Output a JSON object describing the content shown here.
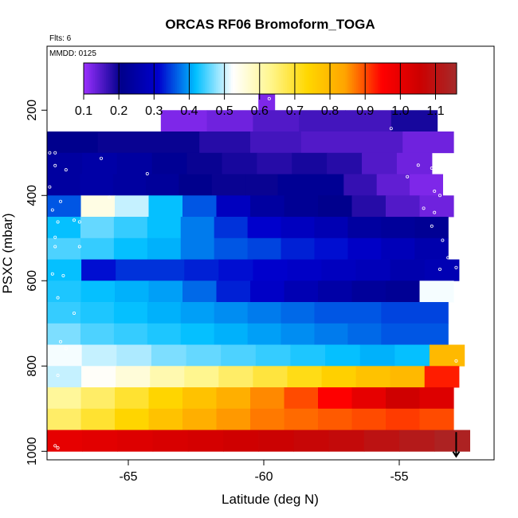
{
  "chart_data": {
    "type": "heatmap",
    "title": "ORCAS RF06 Bromoform_TOGA",
    "annotations": {
      "flights": "Flts: 6",
      "date": "MMDD: 0125"
    },
    "xlabel": "Latitude (deg N)",
    "ylabel": "PSXC (mbar)",
    "xlim": [
      -68,
      -51.5
    ],
    "ylim": [
      1020,
      50
    ],
    "y_reversed": true,
    "x_ticks": [
      "-65",
      "-60",
      "-55"
    ],
    "x_tick_values": [
      -65,
      -60,
      -55
    ],
    "y_ticks": [
      "200",
      "400",
      "600",
      "800",
      "1000"
    ],
    "y_tick_values": [
      200,
      400,
      600,
      800,
      1000
    ],
    "colorbar": {
      "ticks": [
        "0.1",
        "0.2",
        "0.3",
        "0.4",
        "0.5",
        "0.6",
        "0.7",
        "0.8",
        "0.9",
        "1.0",
        "1.1"
      ],
      "tick_values": [
        0.1,
        0.2,
        0.3,
        0.4,
        0.5,
        0.6,
        0.7,
        0.8,
        0.9,
        1.0,
        1.1
      ],
      "range": [
        0.1,
        1.16
      ],
      "colors": [
        "#9b30ff",
        "#00008b",
        "#0000cd",
        "#00bfff",
        "#ffffff",
        "#fff68f",
        "#ffd700",
        "#ffa500",
        "#ff0000",
        "#cd0000",
        "#a52a2a"
      ]
    },
    "bin_height_mbar": 50,
    "rows": [
      {
        "p": 175,
        "lat_start": -60.2,
        "values": [
          0.12
        ]
      },
      {
        "p": 225,
        "lat_start": -63.8,
        "values": [
          0.12,
          0.13,
          0.15,
          0.16,
          0.16,
          0.19
        ]
      },
      {
        "p": 275,
        "lat_start": -68,
        "values": [
          0.21,
          0.2,
          0.2,
          0.18,
          0.16,
          0.15,
          0.15,
          0.13
        ]
      },
      {
        "p": 325,
        "lat_start": -68,
        "values": [
          0.24,
          0.25,
          0.24,
          0.22,
          0.2,
          0.19,
          0.18,
          0.19,
          0.18,
          0.15,
          0.13
        ]
      },
      {
        "p": 375,
        "lat_start": -68,
        "values": [
          0.24,
          0.25,
          0.24,
          0.23,
          0.21,
          0.2,
          0.2,
          0.22,
          0.22,
          0.17,
          0.14,
          0.12
        ]
      },
      {
        "p": 425,
        "lat_start": -68,
        "values": [
          0.36,
          0.55,
          0.5,
          0.42,
          0.36,
          0.29,
          0.24,
          0.22,
          0.21,
          0.18,
          0.15,
          0.13
        ]
      },
      {
        "p": 475,
        "lat_start": -68,
        "values": [
          0.42,
          0.46,
          0.44,
          0.42,
          0.38,
          0.34,
          0.31,
          0.29,
          0.27,
          0.24,
          0.23,
          0.22
        ]
      },
      {
        "p": 525,
        "lat_start": -68,
        "values": [
          0.45,
          0.44,
          0.42,
          0.41,
          0.38,
          0.36,
          0.35,
          0.33,
          0.32,
          0.3,
          0.28,
          0.26
        ]
      },
      {
        "p": 575,
        "lat_start": -68,
        "values": [
          0.42,
          0.32,
          0.34,
          0.34,
          0.33,
          0.32,
          0.31,
          0.3,
          0.29,
          0.28,
          0.26,
          0.27
        ]
      },
      {
        "p": 625,
        "lat_start": -68,
        "values": [
          0.43,
          0.42,
          0.41,
          0.4,
          0.37,
          0.33,
          0.3,
          0.27,
          0.25,
          0.23,
          0.22,
          0.52
        ]
      },
      {
        "p": 675,
        "lat_start": -68,
        "values": [
          0.44,
          0.43,
          0.42,
          0.41,
          0.4,
          0.39,
          0.38,
          0.37,
          0.36,
          0.36,
          0.35,
          0.35
        ]
      },
      {
        "p": 725,
        "lat_start": -68,
        "values": [
          0.47,
          0.45,
          0.44,
          0.43,
          0.42,
          0.41,
          0.4,
          0.39,
          0.38,
          0.37,
          0.36,
          0.36
        ]
      },
      {
        "p": 775,
        "lat_start": -68,
        "values": [
          0.52,
          0.5,
          0.49,
          0.47,
          0.46,
          0.45,
          0.44,
          0.43,
          0.42,
          0.41,
          0.42,
          0.8
        ]
      },
      {
        "p": 825,
        "lat_start": -68,
        "values": [
          0.5,
          0.53,
          0.56,
          0.6,
          0.63,
          0.66,
          0.69,
          0.72,
          0.75,
          0.78,
          0.8,
          0.93
        ]
      },
      {
        "p": 875,
        "lat_start": -68,
        "values": [
          0.62,
          0.66,
          0.7,
          0.74,
          0.78,
          0.82,
          0.86,
          0.9,
          0.95,
          1.0,
          1.05,
          1.02
        ]
      },
      {
        "p": 925,
        "lat_start": -68,
        "values": [
          0.66,
          0.7,
          0.74,
          0.78,
          0.82,
          0.85,
          0.87,
          0.88,
          0.89,
          0.9,
          0.91,
          0.9
        ]
      },
      {
        "p": 975,
        "lat_start": -68,
        "values": [
          1.0,
          1.01,
          1.02,
          1.03,
          1.04,
          1.05,
          1.06,
          1.07,
          1.08,
          1.1,
          1.12,
          1.14
        ]
      }
    ],
    "row_ends": [
      -59.6,
      -53.6,
      -53.0,
      -53.8,
      -53.4,
      -53.0,
      -53.2,
      -53.2,
      -52.8,
      -53.0,
      -53.2,
      -53.2,
      -52.6,
      -52.8,
      -53.0,
      -53.0,
      -52.4
    ],
    "samples": [
      [
        -59.8,
        173
      ],
      [
        -55.3,
        243
      ],
      [
        -67.9,
        300
      ],
      [
        -67.7,
        300
      ],
      [
        -66.0,
        313
      ],
      [
        -54.3,
        329
      ],
      [
        -67.7,
        330
      ],
      [
        -67.3,
        340
      ],
      [
        -53.8,
        336
      ],
      [
        -64.3,
        349
      ],
      [
        -54.7,
        356
      ],
      [
        -67.9,
        380
      ],
      [
        -53.7,
        390
      ],
      [
        -53.5,
        400
      ],
      [
        -65.7,
        404
      ],
      [
        -67.5,
        414
      ],
      [
        -54.1,
        430
      ],
      [
        -53.7,
        440
      ],
      [
        -67.8,
        434
      ],
      [
        -67.6,
        462
      ],
      [
        -67.0,
        458
      ],
      [
        -66.8,
        462
      ],
      [
        -53.8,
        472
      ],
      [
        -53.0,
        482
      ],
      [
        -67.7,
        498
      ],
      [
        -53.4,
        505
      ],
      [
        -67.7,
        520
      ],
      [
        -66.8,
        520
      ],
      [
        -53.2,
        546
      ],
      [
        -52.9,
        569
      ],
      [
        -53.5,
        573
      ],
      [
        -67.8,
        584
      ],
      [
        -67.4,
        588
      ],
      [
        -52.8,
        605
      ],
      [
        -52.9,
        622
      ],
      [
        -67.6,
        640
      ],
      [
        -52.9,
        654
      ],
      [
        -67.0,
        676
      ],
      [
        -52.9,
        695
      ],
      [
        -67.5,
        743
      ],
      [
        -67.3,
        759
      ],
      [
        -52.9,
        788
      ],
      [
        -67.6,
        822
      ],
      [
        -52.6,
        880
      ],
      [
        -52.5,
        941
      ],
      [
        -67.7,
        987
      ],
      [
        -67.6,
        992
      ]
    ],
    "arrow_lat": -52.9
  }
}
